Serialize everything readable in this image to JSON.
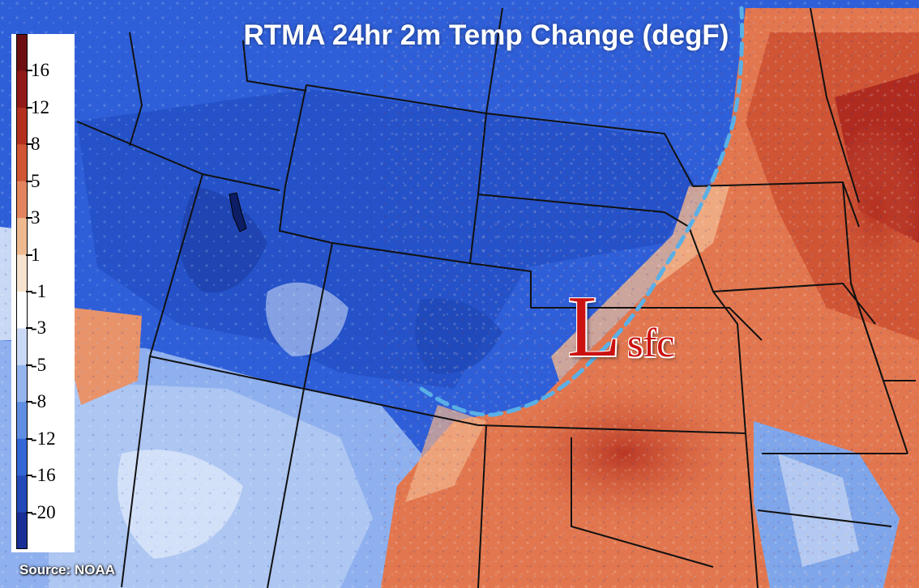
{
  "map": {
    "title": "RTMA 24hr 2m Temp Change (degF)",
    "low_symbol": "L",
    "low_suffix": "sfc",
    "source": "Source: NOAA",
    "colors": {
      "cold_deep": "#1d3fb8",
      "cold": "#2f5fd8",
      "cool": "#7fa6ea",
      "pale": "#c9d8f4",
      "warm_light": "#f2b58c",
      "warm": "#e2774f",
      "warm_deep": "#c9452a",
      "hot": "#a9241c",
      "boundary": "#5ab0e6",
      "low_text": "#cc1111"
    }
  },
  "colorbar": {
    "labels": [
      "16",
      "12",
      "8",
      "5",
      "3",
      "1",
      "-1",
      "-3",
      "-5",
      "-8",
      "-12",
      "-16",
      "-20"
    ],
    "colors": [
      "#6d0f12",
      "#8f1a17",
      "#b3301f",
      "#cf5535",
      "#e2855e",
      "#efb98f",
      "#f7e2cf",
      "#ffffff",
      "#c9d9f5",
      "#93b5ec",
      "#5f8ee2",
      "#3366d6",
      "#2349b8",
      "#1a2f95"
    ]
  }
}
